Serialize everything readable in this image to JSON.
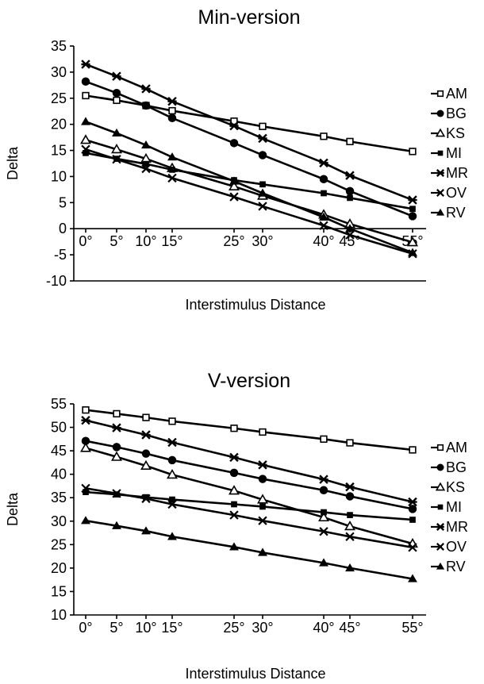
{
  "chart_data": [
    {
      "type": "line",
      "title": "Min-version",
      "xlabel": "Interstimulus Distance",
      "ylabel": "Delta",
      "x": [
        0,
        5,
        10,
        15,
        25,
        30,
        40,
        45,
        55
      ],
      "x_tick_labels": [
        "0°",
        "5°",
        "10°",
        "15°",
        "25°",
        "30°",
        "40°",
        "45°",
        "55°"
      ],
      "ylim": [
        -10,
        35
      ],
      "y_ticks": [
        -10,
        -5,
        0,
        5,
        10,
        15,
        20,
        25,
        30,
        35
      ],
      "legend_position": "right",
      "series": [
        {
          "name": "AM",
          "marker": "open-square",
          "values": [
            25.5,
            24.6,
            23.6,
            22.6,
            20.6,
            19.6,
            17.7,
            16.7,
            14.8
          ]
        },
        {
          "name": "BG",
          "marker": "circle",
          "values": [
            28.2,
            26.0,
            23.6,
            21.2,
            16.4,
            14.1,
            9.5,
            7.2,
            2.4
          ]
        },
        {
          "name": "KS",
          "marker": "open-triangle",
          "values": [
            17.0,
            15.2,
            13.4,
            11.6,
            8.1,
            6.3,
            2.7,
            0.9,
            -2.6
          ]
        },
        {
          "name": "MI",
          "marker": "filled-square",
          "values": [
            14.5,
            13.4,
            12.4,
            11.3,
            9.3,
            8.5,
            6.8,
            5.9,
            3.8
          ]
        },
        {
          "name": "MR",
          "marker": "star",
          "values": [
            31.5,
            29.2,
            26.8,
            24.4,
            19.7,
            17.3,
            12.6,
            10.2,
            5.5
          ]
        },
        {
          "name": "OV",
          "marker": "x",
          "values": [
            15.2,
            13.3,
            11.5,
            9.7,
            6.1,
            4.3,
            0.6,
            -1.2,
            -4.8
          ]
        },
        {
          "name": "RV",
          "marker": "filled-triangle",
          "values": [
            20.5,
            18.3,
            16.0,
            13.7,
            9.1,
            6.8,
            2.2,
            0.0,
            -4.6
          ]
        }
      ]
    },
    {
      "type": "line",
      "title": "V-version",
      "xlabel": "Interstimulus Distance",
      "ylabel": "Delta",
      "x": [
        0,
        5,
        10,
        15,
        25,
        30,
        40,
        45,
        55
      ],
      "x_tick_labels": [
        "0°",
        "5°",
        "10°",
        "15°",
        "25°",
        "30°",
        "40°",
        "45°",
        "55°"
      ],
      "ylim": [
        10,
        55
      ],
      "y_ticks": [
        10,
        15,
        20,
        25,
        30,
        35,
        40,
        45,
        50,
        55
      ],
      "legend_position": "right",
      "series": [
        {
          "name": "AM",
          "marker": "open-square",
          "values": [
            53.7,
            52.9,
            52.1,
            51.3,
            49.8,
            49.0,
            47.5,
            46.7,
            45.2
          ]
        },
        {
          "name": "BG",
          "marker": "circle",
          "values": [
            47.1,
            45.8,
            44.4,
            43.0,
            40.3,
            39.0,
            36.6,
            35.3,
            32.6
          ]
        },
        {
          "name": "KS",
          "marker": "open-triangle",
          "values": [
            45.6,
            43.7,
            41.8,
            39.9,
            36.5,
            34.6,
            30.8,
            28.9,
            25.2
          ]
        },
        {
          "name": "MI",
          "marker": "filled-square",
          "values": [
            36.2,
            35.7,
            35.1,
            34.6,
            33.6,
            33.1,
            31.9,
            31.3,
            30.3
          ]
        },
        {
          "name": "MR",
          "marker": "star",
          "values": [
            51.5,
            49.9,
            48.4,
            46.8,
            43.6,
            42.0,
            38.9,
            37.3,
            34.1
          ]
        },
        {
          "name": "OV",
          "marker": "x",
          "values": [
            37.0,
            35.9,
            34.8,
            33.6,
            31.3,
            30.1,
            27.8,
            26.7,
            24.4
          ]
        },
        {
          "name": "RV",
          "marker": "filled-triangle",
          "values": [
            30.1,
            29.0,
            27.9,
            26.7,
            24.5,
            23.3,
            21.1,
            20.0,
            17.7
          ]
        }
      ]
    }
  ]
}
